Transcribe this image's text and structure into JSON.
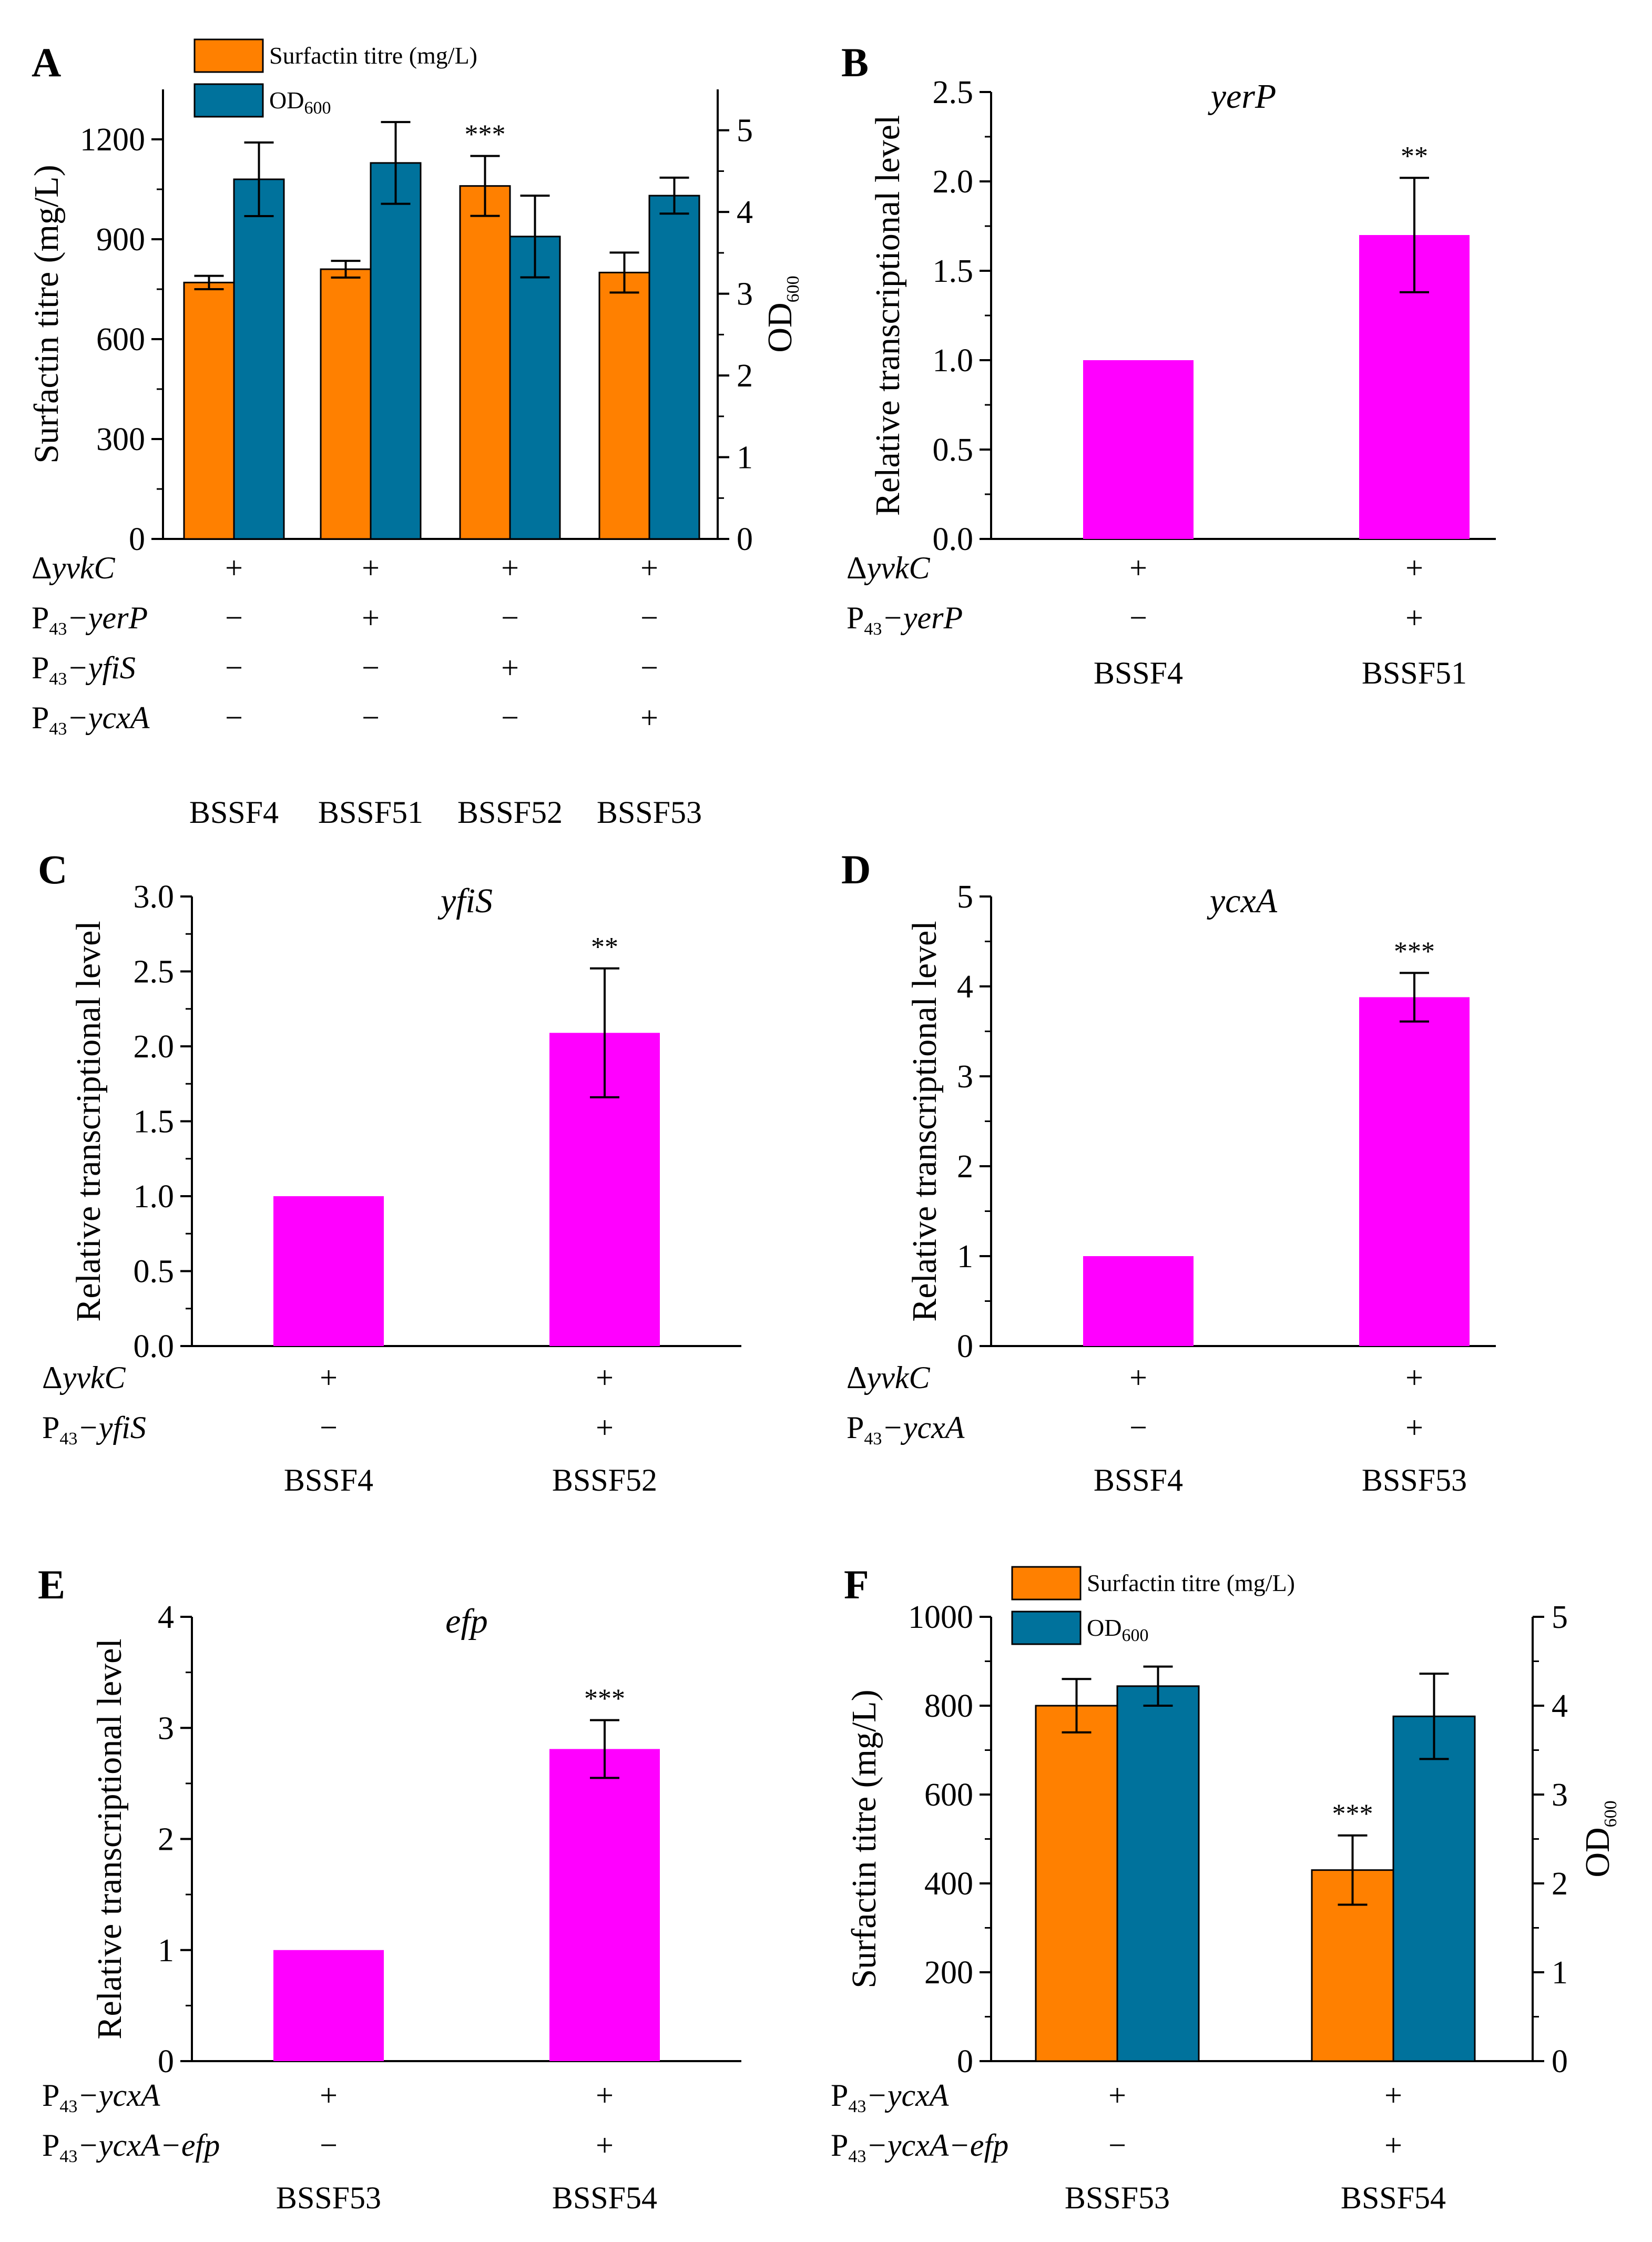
{
  "colors": {
    "titre": "#FF8000",
    "od": "#00729C",
    "transcription": "#FF00FF",
    "axis": "#000000"
  },
  "chart_data": [
    {
      "panel": "A",
      "type": "bar",
      "title": "",
      "ylabel": "Surfactin titre (mg/L)",
      "y2label_main": "OD",
      "y2label_sub": "600",
      "ylim": [
        0,
        1350
      ],
      "yticks": [
        0,
        300,
        600,
        900,
        1200
      ],
      "y2lim": [
        0,
        5.5
      ],
      "y2ticks": [
        0,
        1,
        2,
        3,
        4,
        5
      ],
      "categories": [
        "BSSF4",
        "BSSF51",
        "BSSF52",
        "BSSF53"
      ],
      "series": [
        {
          "name": "Surfactin titre (mg/L)",
          "axis": "left",
          "color": "titre",
          "values": [
            770,
            810,
            1060,
            800
          ],
          "errors": [
            20,
            25,
            90,
            60
          ]
        },
        {
          "name_main": "OD",
          "name_sub": "600",
          "axis": "right",
          "color": "od",
          "values": [
            4.4,
            4.6,
            3.7,
            4.2
          ],
          "errors": [
            0.45,
            0.5,
            0.5,
            0.22
          ]
        }
      ],
      "significance": [
        {
          "series": 0,
          "category": 2,
          "label": "***"
        }
      ],
      "conditions": [
        {
          "prefix": "Δ",
          "main": "yvkC",
          "signs": [
            "+",
            "+",
            "+",
            "+"
          ]
        },
        {
          "main": "P",
          "sub": "43",
          "rest": "−yerP",
          "signs": [
            "−",
            "+",
            "−",
            "−"
          ]
        },
        {
          "main": "P",
          "sub": "43",
          "rest": "−yfiS",
          "signs": [
            "−",
            "−",
            "+",
            "−"
          ]
        },
        {
          "main": "P",
          "sub": "43",
          "rest": "−ycxA",
          "signs": [
            "−",
            "−",
            "−",
            "+"
          ]
        }
      ]
    },
    {
      "panel": "B",
      "type": "bar",
      "title": "yerP",
      "ylabel": "Relative transcriptional level",
      "ylim": [
        0,
        2.5
      ],
      "yticks": [
        "0.0",
        "0.5",
        "1.0",
        "1.5",
        "2.0",
        "2.5"
      ],
      "categories": [
        "BSSF4",
        "BSSF51"
      ],
      "values": [
        1.0,
        1.7
      ],
      "errors": [
        0,
        0.32
      ],
      "significance": [
        {
          "category": 1,
          "label": "**"
        }
      ],
      "conditions": [
        {
          "prefix": "Δ",
          "main": "yvkC",
          "signs": [
            "+",
            "+"
          ]
        },
        {
          "main": "P",
          "sub": "43",
          "rest": "−yerP",
          "signs": [
            "−",
            "+"
          ]
        }
      ]
    },
    {
      "panel": "C",
      "type": "bar",
      "title": "yfiS",
      "ylabel": "Relative transcriptional level",
      "ylim": [
        0,
        3.0
      ],
      "yticks": [
        "0.0",
        "0.5",
        "1.0",
        "1.5",
        "2.0",
        "2.5",
        "3.0"
      ],
      "categories": [
        "BSSF4",
        "BSSF52"
      ],
      "values": [
        1.0,
        2.09
      ],
      "errors": [
        0,
        0.43
      ],
      "significance": [
        {
          "category": 1,
          "label": "**"
        }
      ],
      "conditions": [
        {
          "prefix": "Δ",
          "main": "yvkC",
          "signs": [
            "+",
            "+"
          ]
        },
        {
          "main": "P",
          "sub": "43",
          "rest": "−yfiS",
          "signs": [
            "−",
            "+"
          ]
        }
      ]
    },
    {
      "panel": "D",
      "type": "bar",
      "title": "ycxA",
      "ylabel": "Relative transcriptional level",
      "ylim": [
        0,
        5
      ],
      "yticks": [
        "0",
        "1",
        "2",
        "3",
        "4",
        "5"
      ],
      "categories": [
        "BSSF4",
        "BSSF53"
      ],
      "values": [
        1.0,
        3.88
      ],
      "errors": [
        0,
        0.27
      ],
      "significance": [
        {
          "category": 1,
          "label": "***"
        }
      ],
      "conditions": [
        {
          "prefix": "Δ",
          "main": "yvkC",
          "signs": [
            "+",
            "+"
          ]
        },
        {
          "main": "P",
          "sub": "43",
          "rest": "−ycxA",
          "signs": [
            "−",
            "+"
          ]
        }
      ]
    },
    {
      "panel": "E",
      "type": "bar",
      "title": "efp",
      "ylabel": "Relative transcriptional level",
      "ylim": [
        0,
        4
      ],
      "yticks": [
        "0",
        "1",
        "2",
        "3",
        "4"
      ],
      "categories": [
        "BSSF53",
        "BSSF54"
      ],
      "values": [
        1.0,
        2.81
      ],
      "errors": [
        0,
        0.26
      ],
      "significance": [
        {
          "category": 1,
          "label": "***"
        }
      ],
      "conditions": [
        {
          "main": "P",
          "sub": "43",
          "rest": "−ycxA",
          "signs": [
            "+",
            "+"
          ]
        },
        {
          "main": "P",
          "sub": "43",
          "rest": "−ycxA−efp",
          "signs": [
            "−",
            "+"
          ]
        }
      ]
    },
    {
      "panel": "F",
      "type": "bar",
      "title": "",
      "ylabel": "Surfactin titre (mg/L)",
      "y2label_main": "OD",
      "y2label_sub": "600",
      "ylim": [
        0,
        1000
      ],
      "yticks": [
        0,
        200,
        400,
        600,
        800,
        1000
      ],
      "y2lim": [
        0,
        5
      ],
      "y2ticks": [
        0,
        1,
        2,
        3,
        4,
        5
      ],
      "categories": [
        "BSSF53",
        "BSSF54"
      ],
      "series": [
        {
          "name": "Surfactin titre (mg/L)",
          "axis": "left",
          "color": "titre",
          "values": [
            800,
            430
          ],
          "errors": [
            60,
            78
          ]
        },
        {
          "name_main": "OD",
          "name_sub": "600",
          "axis": "right",
          "color": "od",
          "values": [
            4.22,
            3.88
          ],
          "errors": [
            0.22,
            0.48
          ]
        }
      ],
      "significance": [
        {
          "series": 0,
          "category": 1,
          "label": "***"
        }
      ],
      "conditions": [
        {
          "main": "P",
          "sub": "43",
          "rest": "−ycxA",
          "signs": [
            "+",
            "+"
          ]
        },
        {
          "main": "P",
          "sub": "43",
          "rest": "−ycxA−efp",
          "signs": [
            "−",
            "+"
          ]
        }
      ]
    }
  ]
}
